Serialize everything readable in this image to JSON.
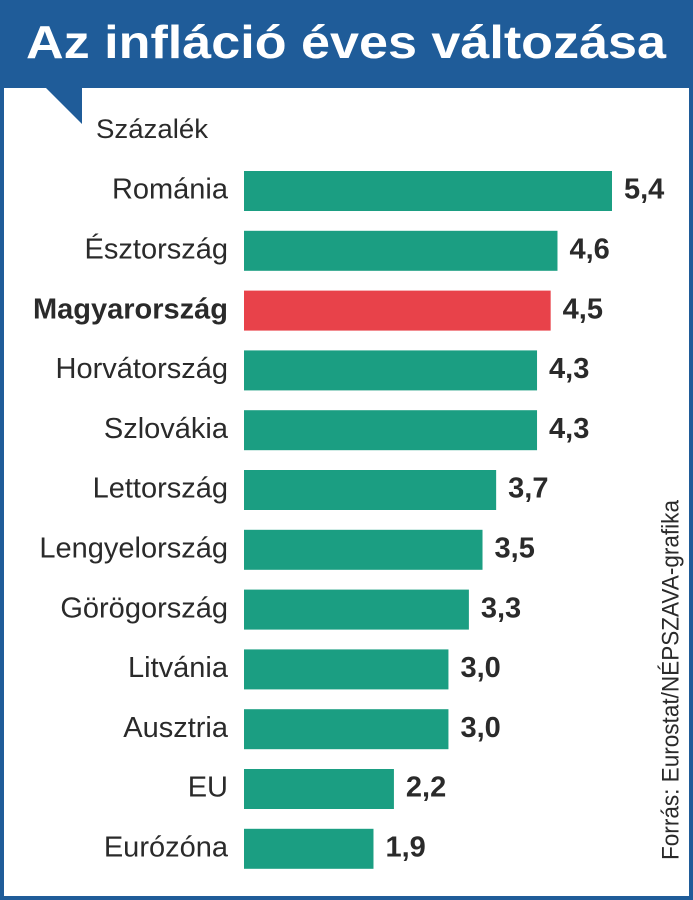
{
  "chart_data": {
    "type": "barh",
    "title": "Az infláció éves változása",
    "subtitle": "Százalék",
    "source": "Forrás: Eurostat/NÉPSZAVA-grafika",
    "categories": [
      "Románia",
      "Észtország",
      "Magyarország",
      "Horvátország",
      "Szlovákia",
      "Lettország",
      "Lengyelország",
      "Görögország",
      "Litvánia",
      "Ausztria",
      "EU",
      "Eurózóna"
    ],
    "values": [
      5.4,
      4.6,
      4.5,
      4.3,
      4.3,
      3.7,
      3.5,
      3.3,
      3.0,
      3.0,
      2.2,
      1.9
    ],
    "value_labels": [
      "5,4",
      "4,6",
      "4,5",
      "4,3",
      "4,3",
      "3,7",
      "3,5",
      "3,3",
      "3,0",
      "3,0",
      "2,2",
      "1,9"
    ],
    "color": "#1b9e82",
    "highlight": 2,
    "highlight_color": "#e8424a"
  }
}
